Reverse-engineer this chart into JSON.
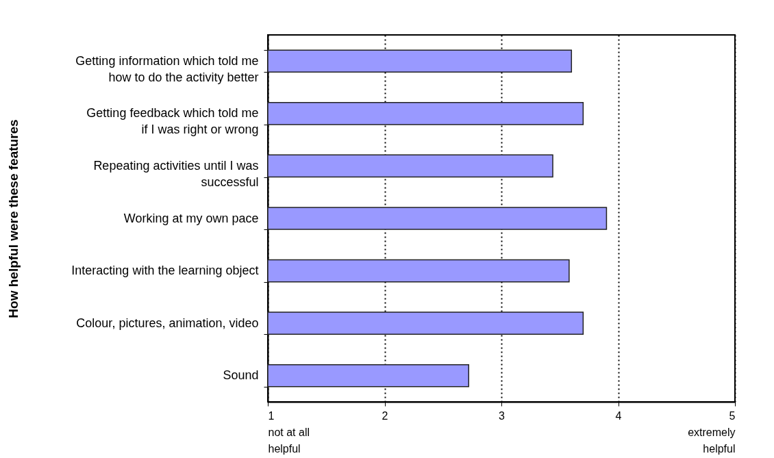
{
  "chart_data": {
    "type": "bar",
    "orientation": "horizontal",
    "ylabel": "How helpful were these features",
    "categories": [
      "Getting information which told me\nhow to do the activity better",
      "Getting feedback which told me\nif I was right or wrong",
      "Repeating activities until I was\nsuccessful",
      "Working at my own pace",
      "Interacting with the learning object",
      "Colour, pictures, animation, video",
      "Sound"
    ],
    "values": [
      3.6,
      3.7,
      3.44,
      3.9,
      3.58,
      3.7,
      2.72
    ],
    "color": "#9999ff",
    "xlim": [
      1,
      5
    ],
    "xticks": [
      {
        "value": 1,
        "label": "1\nnot at all\nhelpful"
      },
      2,
      3,
      4,
      {
        "value": 5,
        "label": "5\nextremely\nhelpful"
      }
    ],
    "grid": "x",
    "line_style": "dotted"
  }
}
